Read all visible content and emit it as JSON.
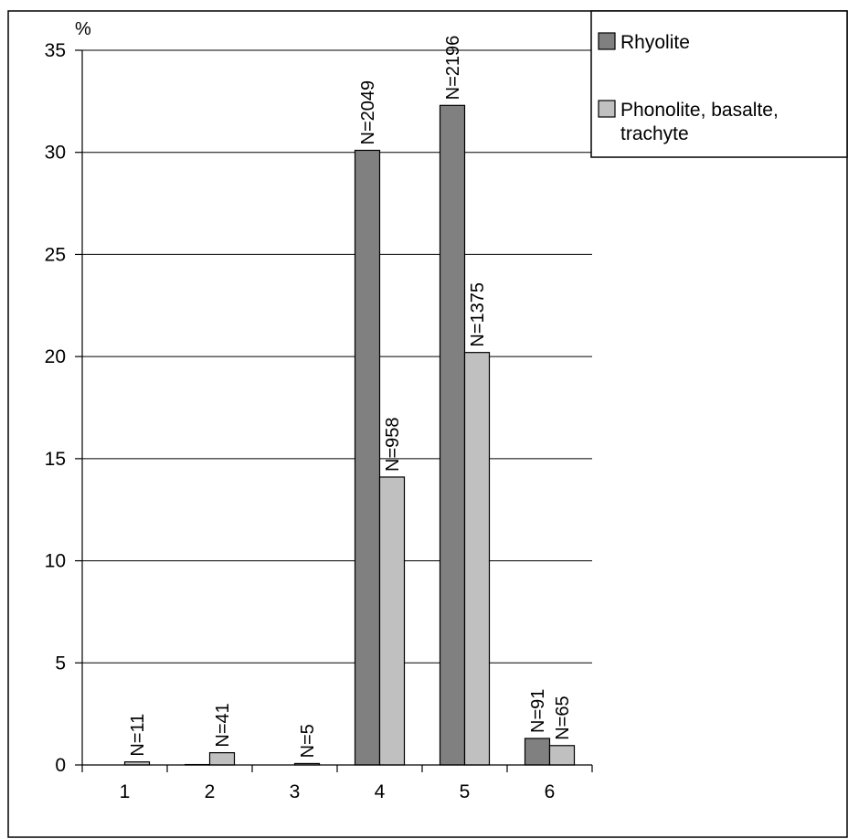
{
  "chart_data": {
    "type": "bar",
    "categories": [
      "1",
      "2",
      "3",
      "4",
      "5",
      "6"
    ],
    "y_unit": "%",
    "ylim": [
      0,
      35
    ],
    "yticks": [
      0,
      5,
      10,
      15,
      20,
      25,
      30,
      35
    ],
    "grid": true,
    "legend_position": "top-right",
    "series": [
      {
        "name": "Rhyolite",
        "color": "#808080",
        "values": [
          0,
          0.02,
          0,
          30.1,
          32.3,
          1.3
        ],
        "labels": [
          "",
          "",
          "",
          "N=2049",
          "N=2196",
          "N=91"
        ]
      },
      {
        "name": "Phonolite, basalte, trachyte",
        "color": "#c0c0c0",
        "values": [
          0.15,
          0.6,
          0.07,
          14.1,
          20.2,
          0.95
        ],
        "labels": [
          "N=11",
          "N=41",
          "N=5",
          "N=958",
          "N=1375",
          "N=65"
        ]
      }
    ]
  }
}
